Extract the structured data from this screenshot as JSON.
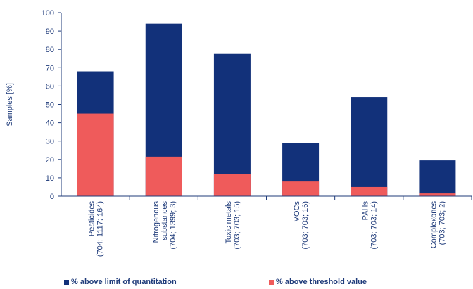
{
  "chart_data": {
    "type": "bar",
    "stacked": false,
    "overlaid": true,
    "ylabel": "Samples  [%]",
    "xlabel": "",
    "ylim": [
      0,
      100
    ],
    "yticks": [
      0,
      10,
      20,
      30,
      40,
      50,
      60,
      70,
      80,
      90,
      100
    ],
    "grid": false,
    "legend_position": "bottom",
    "categories": [
      [
        "Pesticides",
        "(704; 1117; 164)"
      ],
      [
        "Nitrogenous",
        "substances",
        "(704; 1399; 3)"
      ],
      [
        "Toxic metals",
        "(703; 703; 15)"
      ],
      [
        "VOCs",
        "(703; 703; 16)"
      ],
      [
        "PAHs",
        "(703; 703; 14)"
      ],
      [
        "Complexones",
        "(703; 703; 2)"
      ]
    ],
    "series": [
      {
        "name": "%  above limit of quantitation",
        "color": "#12317a",
        "values": [
          68,
          94,
          77.5,
          29,
          54,
          19.5
        ]
      },
      {
        "name": "% above threshold value",
        "color": "#ef5b5b",
        "values": [
          45,
          21.5,
          12,
          8,
          5,
          1.5
        ]
      }
    ]
  },
  "colors": {
    "axis": "#1f3b7a",
    "text": "#1f3b7a"
  }
}
